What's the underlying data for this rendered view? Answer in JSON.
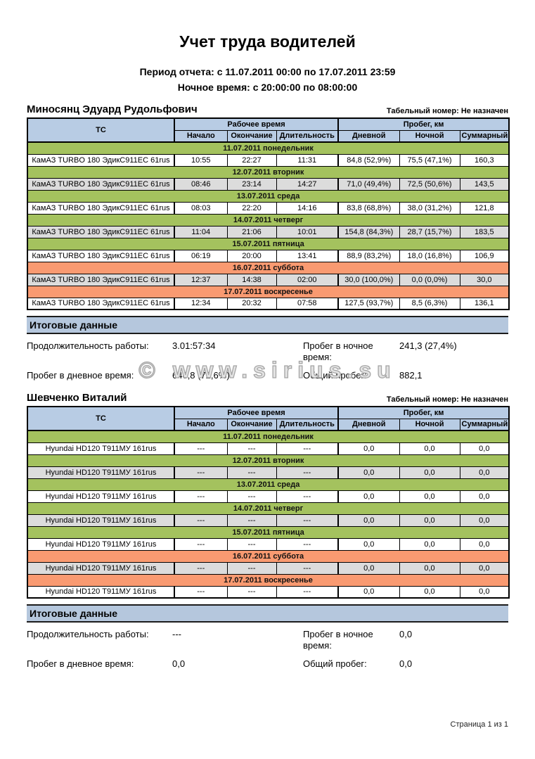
{
  "page": {
    "title": "Учет труда водителей",
    "period_line": "Период отчета: с 11.07.2011 00:00 по 17.07.2011 23:59",
    "night_line": "Ночное время: с 20:00:00 по 08:00:00",
    "watermark": "© www.sirius.su",
    "footer": "Страница 1 из 1"
  },
  "table_headers": {
    "tc": "ТС",
    "work_time_group": "Рабочее время",
    "mileage_group": "Пробег, км",
    "sub": [
      "Начало",
      "Окончание",
      "Длительность",
      "Дневной",
      "Ночной",
      "Суммарный"
    ]
  },
  "summary_labels": {
    "header": "Итоговые данные",
    "duration": "Продолжительность работы:",
    "day_mileage": "Пробег в дневное время:",
    "night_mileage": "Пробег в ночное время:",
    "total_mileage": "Общий пробег:"
  },
  "drivers": [
    {
      "name": "Миносянц Эдуард Рудольфович",
      "personnel_number": "Табельный номер: Не назначен",
      "days": [
        {
          "date": "11.07.2011 понедельник",
          "weekend": false,
          "rows": [
            {
              "vehicle": "КамАЗ TURBO 180 ЭдикС911ЕС 61rus",
              "start": "10:55",
              "end": "22:27",
              "duration": "11:31",
              "day_km": "84,8 (52,9%)",
              "night_km": "75,5 (47,1%)",
              "total_km": "160,3"
            }
          ]
        },
        {
          "date": "12.07.2011 вторник",
          "weekend": false,
          "rows": [
            {
              "vehicle": "КамАЗ TURBO 180 ЭдикС911ЕС 61rus",
              "start": "08:46",
              "end": "23:14",
              "duration": "14:27",
              "day_km": "71,0 (49,4%)",
              "night_km": "72,5 (50,6%)",
              "total_km": "143,5"
            }
          ]
        },
        {
          "date": "13.07.2011 среда",
          "weekend": false,
          "rows": [
            {
              "vehicle": "КамАЗ TURBO 180 ЭдикС911ЕС 61rus",
              "start": "08:03",
              "end": "22:20",
              "duration": "14:16",
              "day_km": "83,8 (68,8%)",
              "night_km": "38,0 (31,2%)",
              "total_km": "121,8"
            }
          ]
        },
        {
          "date": "14.07.2011 четверг",
          "weekend": false,
          "rows": [
            {
              "vehicle": "КамАЗ TURBO 180 ЭдикС911ЕС 61rus",
              "start": "11:04",
              "end": "21:06",
              "duration": "10:01",
              "day_km": "154,8 (84,3%)",
              "night_km": "28,7 (15,7%)",
              "total_km": "183,5"
            }
          ]
        },
        {
          "date": "15.07.2011 пятница",
          "weekend": false,
          "rows": [
            {
              "vehicle": "КамАЗ TURBO 180 ЭдикС911ЕС 61rus",
              "start": "06:19",
              "end": "20:00",
              "duration": "13:41",
              "day_km": "88,9 (83,2%)",
              "night_km": "18,0 (16,8%)",
              "total_km": "106,9"
            }
          ]
        },
        {
          "date": "16.07.2011 суббота",
          "weekend": true,
          "rows": [
            {
              "vehicle": "КамАЗ TURBO 180 ЭдикС911ЕС 61rus",
              "start": "12:37",
              "end": "14:38",
              "duration": "02:00",
              "day_km": "30,0 (100,0%)",
              "night_km": "0,0 (0,0%)",
              "total_km": "30,0"
            }
          ]
        },
        {
          "date": "17.07.2011 воскресенье",
          "weekend": true,
          "rows": [
            {
              "vehicle": "КамАЗ TURBO 180 ЭдикС911ЕС 61rus",
              "start": "12:34",
              "end": "20:32",
              "duration": "07:58",
              "day_km": "127,5 (93,7%)",
              "night_km": "8,5 (6,3%)",
              "total_km": "136,1"
            }
          ]
        }
      ],
      "summary": {
        "duration": "3.01:57:34",
        "night_mileage": "241,3 (27,4%)",
        "day_mileage": "640,8 (72,6%)",
        "total_mileage": "882,1"
      }
    },
    {
      "name": "Шевченко Виталий",
      "personnel_number": "Табельный номер: Не назначен",
      "days": [
        {
          "date": "11.07.2011 понедельник",
          "weekend": false,
          "rows": [
            {
              "vehicle": "Hyundai HD120 Т911МУ 161rus",
              "start": "---",
              "end": "---",
              "duration": "---",
              "day_km": "0,0",
              "night_km": "0,0",
              "total_km": "0,0"
            }
          ]
        },
        {
          "date": "12.07.2011 вторник",
          "weekend": false,
          "rows": [
            {
              "vehicle": "Hyundai HD120 Т911МУ 161rus",
              "start": "---",
              "end": "---",
              "duration": "---",
              "day_km": "0,0",
              "night_km": "0,0",
              "total_km": "0,0"
            }
          ]
        },
        {
          "date": "13.07.2011 среда",
          "weekend": false,
          "rows": [
            {
              "vehicle": "Hyundai HD120 Т911МУ 161rus",
              "start": "---",
              "end": "---",
              "duration": "---",
              "day_km": "0,0",
              "night_km": "0,0",
              "total_km": "0,0"
            }
          ]
        },
        {
          "date": "14.07.2011 четверг",
          "weekend": false,
          "rows": [
            {
              "vehicle": "Hyundai HD120 Т911МУ 161rus",
              "start": "---",
              "end": "---",
              "duration": "---",
              "day_km": "0,0",
              "night_km": "0,0",
              "total_km": "0,0"
            }
          ]
        },
        {
          "date": "15.07.2011 пятница",
          "weekend": false,
          "rows": [
            {
              "vehicle": "Hyundai HD120 Т911МУ 161rus",
              "start": "---",
              "end": "---",
              "duration": "---",
              "day_km": "0,0",
              "night_km": "0,0",
              "total_km": "0,0"
            }
          ]
        },
        {
          "date": "16.07.2011 суббота",
          "weekend": true,
          "rows": [
            {
              "vehicle": "Hyundai HD120 Т911МУ 161rus",
              "start": "---",
              "end": "---",
              "duration": "---",
              "day_km": "0,0",
              "night_km": "0,0",
              "total_km": "0,0"
            }
          ]
        },
        {
          "date": "17.07.2011 воскресенье",
          "weekend": true,
          "rows": [
            {
              "vehicle": "Hyundai HD120 Т911МУ 161rus",
              "start": "---",
              "end": "---",
              "duration": "---",
              "day_km": "0,0",
              "night_km": "0,0",
              "total_km": "0,0"
            }
          ]
        }
      ],
      "summary": {
        "duration": "---",
        "night_mileage": "0,0",
        "day_mileage": "0,0",
        "total_mileage": "0,0"
      }
    }
  ],
  "colors": {
    "header_blue": "#b8cce4",
    "band_green": "#a4c25e",
    "band_orange": "#f99a71",
    "row_gray": "#dcdcdc",
    "summary_blue": "#b5c7dd"
  }
}
